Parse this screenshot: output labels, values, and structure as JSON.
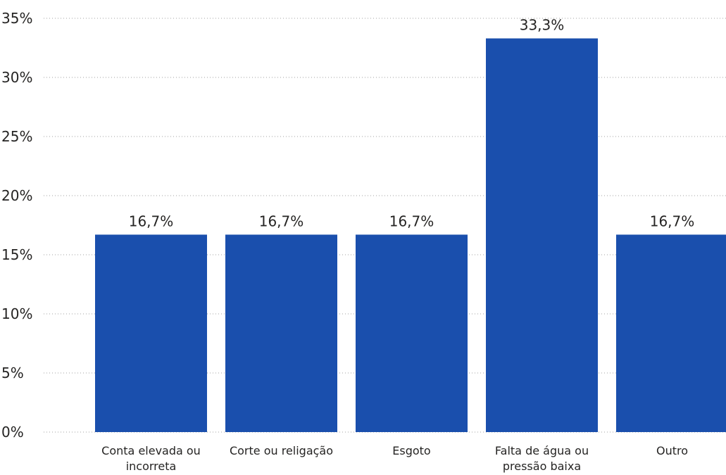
{
  "chart_data": {
    "type": "bar",
    "categories": [
      "Conta elevada ou incorreta",
      "Corte ou religação",
      "Esgoto",
      "Falta de água ou pressão baixa",
      "Outro"
    ],
    "category_label_lines": [
      [
        "Conta elevada ou",
        "incorreta"
      ],
      [
        "Corte ou religação"
      ],
      [
        "Esgoto"
      ],
      [
        "Falta de água ou",
        "pressão baixa"
      ],
      [
        "Outro"
      ]
    ],
    "values": [
      16.7,
      16.7,
      16.7,
      33.3,
      16.7
    ],
    "data_labels": [
      "16,7%",
      "16,7%",
      "16,7%",
      "33,3%",
      "16,7%"
    ],
    "yticks": [
      0,
      5,
      10,
      15,
      20,
      25,
      30,
      35
    ],
    "ytick_labels": [
      "0%",
      "5%",
      "10%",
      "15%",
      "20%",
      "25%",
      "30%",
      "35%"
    ],
    "ylim": [
      0,
      35
    ],
    "grid": true,
    "bar_color": "#1a4fad",
    "title": "",
    "xlabel": "",
    "ylabel": ""
  }
}
